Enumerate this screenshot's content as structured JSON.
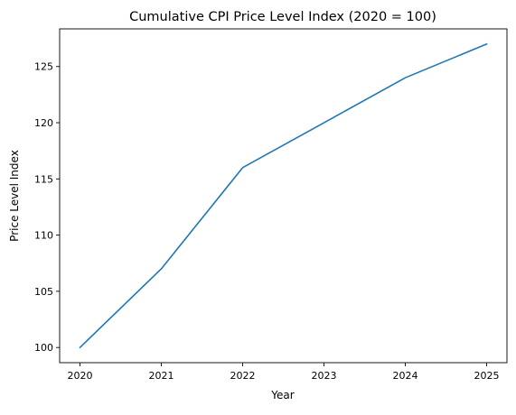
{
  "chart_data": {
    "type": "line",
    "title": "Cumulative CPI Price Level Index (2020 = 100)",
    "xlabel": "Year",
    "ylabel": "Price Level Index",
    "x": [
      2020,
      2021,
      2022,
      2023,
      2024,
      2025
    ],
    "series": [
      {
        "values": [
          100,
          107,
          116,
          120,
          124,
          127
        ],
        "color": "#1f77b4"
      }
    ],
    "xticks": [
      "2020",
      "2021",
      "2022",
      "2023",
      "2024",
      "2025"
    ],
    "yticks": [
      "100",
      "105",
      "110",
      "115",
      "120",
      "125"
    ],
    "xlim": [
      2019.75,
      2025.25
    ],
    "ylim": [
      98.65,
      128.35
    ],
    "grid": false,
    "legend": "none"
  }
}
